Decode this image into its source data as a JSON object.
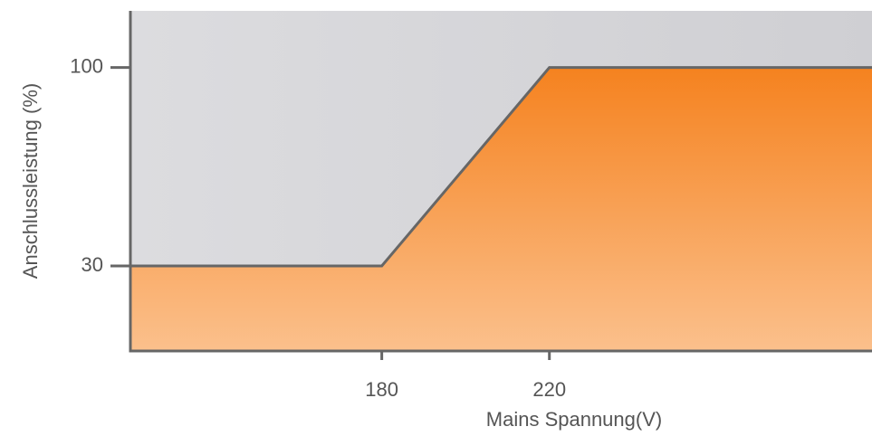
{
  "chart_data": {
    "type": "area",
    "x_label": "Mains Spannung(V)",
    "y_label": "Anschlussleistung (%)",
    "x": [
      120,
      180,
      220,
      297
    ],
    "values": [
      30,
      30,
      100,
      100
    ],
    "color": "#f5821f",
    "xlim": [
      120,
      297
    ],
    "xticks": [
      180,
      220
    ],
    "ylim": [
      0,
      120
    ],
    "yticks": [
      30,
      100
    ],
    "grid": false
  }
}
